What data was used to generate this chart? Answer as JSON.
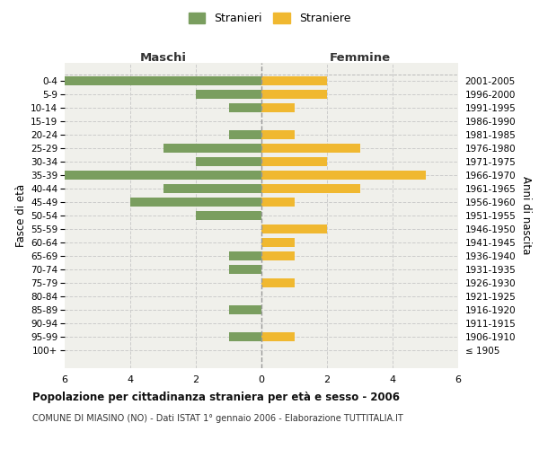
{
  "age_groups": [
    "100+",
    "95-99",
    "90-94",
    "85-89",
    "80-84",
    "75-79",
    "70-74",
    "65-69",
    "60-64",
    "55-59",
    "50-54",
    "45-49",
    "40-44",
    "35-39",
    "30-34",
    "25-29",
    "20-24",
    "15-19",
    "10-14",
    "5-9",
    "0-4"
  ],
  "birth_years": [
    "≤ 1905",
    "1906-1910",
    "1911-1915",
    "1916-1920",
    "1921-1925",
    "1926-1930",
    "1931-1935",
    "1936-1940",
    "1941-1945",
    "1946-1950",
    "1951-1955",
    "1956-1960",
    "1961-1965",
    "1966-1970",
    "1971-1975",
    "1976-1980",
    "1981-1985",
    "1986-1990",
    "1991-1995",
    "1996-2000",
    "2001-2005"
  ],
  "maschi": [
    0,
    1,
    0,
    1,
    0,
    0,
    1,
    1,
    0,
    0,
    2,
    4,
    3,
    6,
    2,
    3,
    1,
    0,
    1,
    2,
    6
  ],
  "femmine": [
    0,
    1,
    0,
    0,
    0,
    1,
    0,
    1,
    1,
    2,
    0,
    1,
    3,
    5,
    2,
    3,
    1,
    0,
    1,
    2,
    2
  ],
  "maschi_color": "#7a9e5f",
  "femmine_color": "#f0b830",
  "title": "Popolazione per cittadinanza straniera per età e sesso - 2006",
  "subtitle": "COMUNE DI MIASINO (NO) - Dati ISTAT 1° gennaio 2006 - Elaborazione TUTTITALIA.IT",
  "xlabel_left": "Maschi",
  "xlabel_right": "Femmine",
  "ylabel_left": "Fasce di età",
  "ylabel_right": "Anni di nascita",
  "legend_maschi": "Stranieri",
  "legend_femmine": "Straniere",
  "xlim": 6,
  "background_color": "#ffffff",
  "plot_bg_color": "#f0f0eb"
}
